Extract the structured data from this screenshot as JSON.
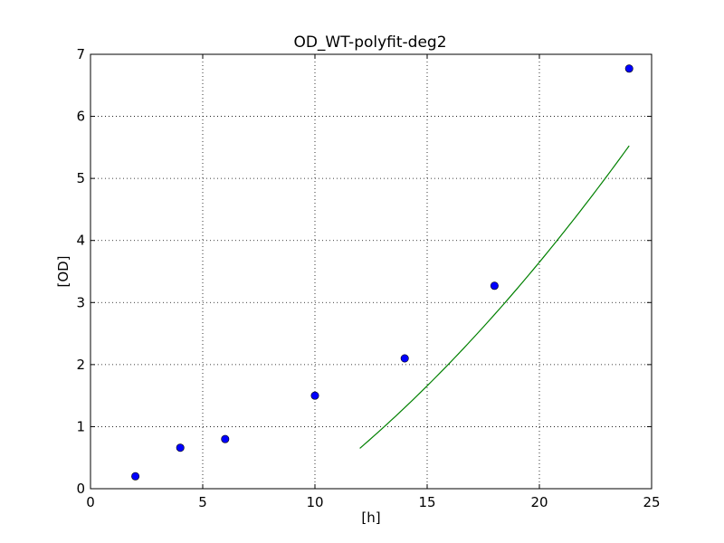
{
  "chart_data": {
    "type": "scatter",
    "title": "OD_WT-polyfit-deg2",
    "xlabel": "[h]",
    "ylabel": "[OD]",
    "xlim": [
      0,
      25
    ],
    "ylim": [
      0,
      7
    ],
    "xticks": [
      0,
      5,
      10,
      15,
      20,
      25
    ],
    "yticks": [
      0,
      1,
      2,
      3,
      4,
      5,
      6,
      7
    ],
    "grid": true,
    "series": [
      {
        "kind": "scatter",
        "color": "#0000ff",
        "marker": "circle",
        "x": [
          2,
          4,
          6,
          10,
          14,
          18,
          24
        ],
        "y": [
          0.2,
          0.66,
          0.8,
          1.5,
          2.1,
          3.27,
          6.77
        ]
      },
      {
        "kind": "line",
        "color": "#008000",
        "fit": "polynomial degree 2",
        "x_range": [
          12,
          24
        ],
        "coefficients": [
          0.00783,
          0.1244,
          -1.97
        ]
      }
    ]
  }
}
